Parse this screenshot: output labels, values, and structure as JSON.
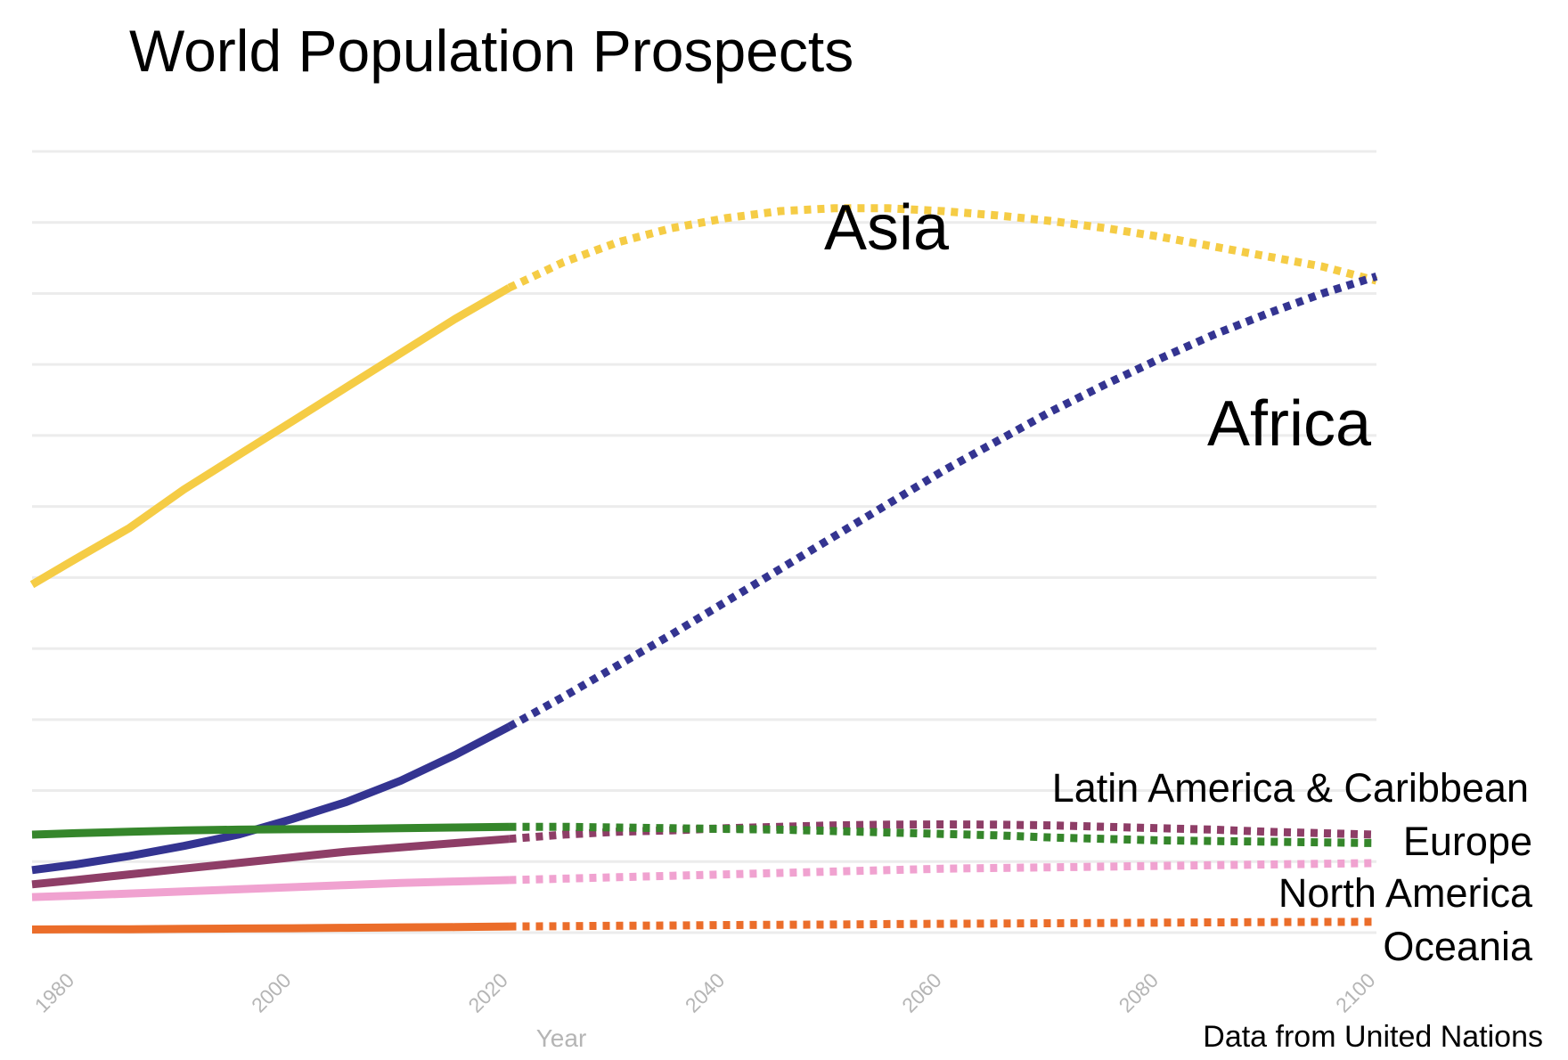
{
  "chart_data": {
    "type": "line",
    "title": "World Population Prospects",
    "xlabel": "Year",
    "ylabel": "",
    "source": "Data from United Nations",
    "xlim": [
      1976,
      2100
    ],
    "ylim": [
      0,
      5500
    ],
    "x_ticks": [
      "1980",
      "2000",
      "2020",
      "2040",
      "2060",
      "2080",
      "2100"
    ],
    "grid": true,
    "projection_start": 2020,
    "legend": "inline labels",
    "x": [
      1976,
      1980,
      1985,
      1990,
      1995,
      2000,
      2005,
      2010,
      2015,
      2020,
      2025,
      2030,
      2035,
      2040,
      2045,
      2050,
      2055,
      2060,
      2065,
      2070,
      2075,
      2080,
      2085,
      2090,
      2095,
      2100
    ],
    "series": [
      {
        "name": "Asia",
        "color": "#f5cc45",
        "values": [
          2450,
          2630,
          2850,
          3120,
          3360,
          3600,
          3840,
          4080,
          4320,
          4540,
          4720,
          4860,
          4960,
          5030,
          5080,
          5100,
          5100,
          5080,
          5050,
          5010,
          4960,
          4900,
          4830,
          4760,
          4690,
          4590
        ]
      },
      {
        "name": "Africa",
        "color": "#343491",
        "values": [
          440,
          480,
          540,
          610,
          690,
          800,
          920,
          1070,
          1250,
          1450,
          1660,
          1880,
          2100,
          2330,
          2560,
          2790,
          3020,
          3250,
          3460,
          3670,
          3860,
          4040,
          4210,
          4360,
          4500,
          4620
        ]
      },
      {
        "name": "Latin America & Caribbean",
        "color": "#8e3e67",
        "values": [
          340,
          370,
          410,
          450,
          490,
          530,
          570,
          600,
          630,
          660,
          690,
          710,
          720,
          735,
          745,
          755,
          760,
          762,
          760,
          755,
          745,
          735,
          725,
          710,
          700,
          690
        ]
      },
      {
        "name": "Europe",
        "color": "#35862b",
        "values": [
          690,
          700,
          710,
          720,
          725,
          728,
          730,
          735,
          740,
          745,
          745,
          740,
          735,
          730,
          725,
          715,
          705,
          695,
          685,
          670,
          660,
          650,
          645,
          640,
          635,
          630
        ]
      },
      {
        "name": "North America",
        "color": "#f0a2d0",
        "values": [
          250,
          260,
          275,
          290,
          305,
          320,
          335,
          350,
          360,
          370,
          380,
          390,
          400,
          410,
          420,
          430,
          440,
          450,
          455,
          460,
          465,
          470,
          475,
          480,
          485,
          490
        ]
      },
      {
        "name": "Oceania",
        "color": "#eb6d2a",
        "values": [
          22,
          23,
          24,
          27,
          29,
          31,
          34,
          37,
          39,
          43,
          45,
          48,
          50,
          53,
          55,
          57,
          60,
          62,
          64,
          66,
          68,
          70,
          72,
          74,
          75,
          76
        ]
      }
    ]
  }
}
